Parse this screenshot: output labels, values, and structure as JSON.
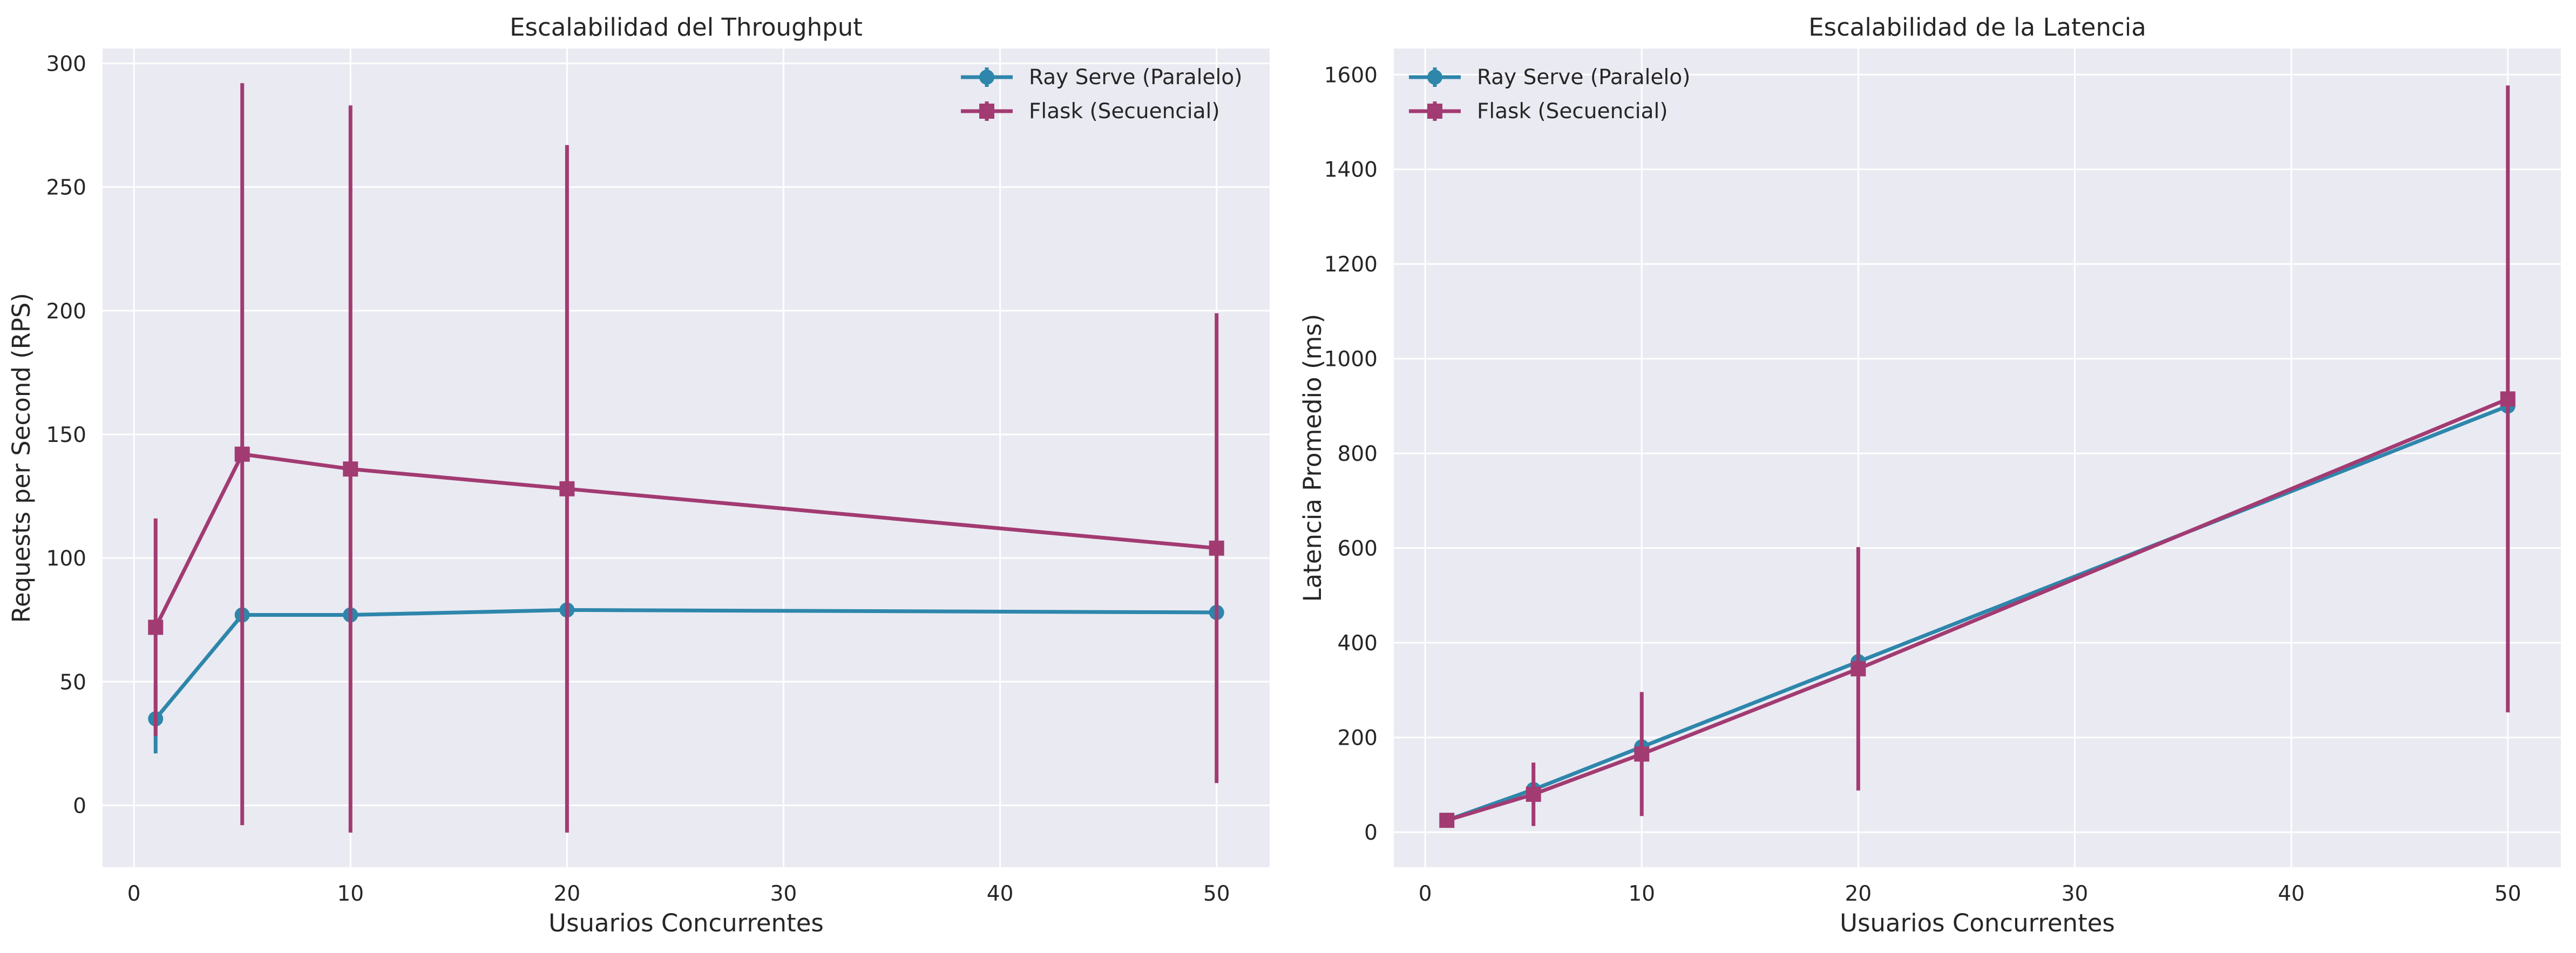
{
  "chart_data": [
    {
      "type": "line",
      "title": "Escalabilidad del Throughput",
      "xlabel": "Usuarios Concurrentes",
      "ylabel": "Requests per Second (RPS)",
      "xlim": [
        -1.45,
        52.45
      ],
      "ylim": [
        -25,
        306
      ],
      "xticks": [
        0,
        10,
        20,
        30,
        40,
        50
      ],
      "yticks": [
        0,
        50,
        100,
        150,
        200,
        250,
        300
      ],
      "grid": true,
      "legend_position": "top-right",
      "series": [
        {
          "name": "Ray Serve (Paralelo)",
          "color": "#2E86AB",
          "marker": "circle",
          "x": [
            1,
            5,
            10,
            20,
            50
          ],
          "y": [
            35,
            77,
            77,
            79,
            78
          ],
          "yerr": [
            14,
            null,
            null,
            null,
            null
          ]
        },
        {
          "name": "Flask (Secuencial)",
          "color": "#A23B72",
          "marker": "square",
          "x": [
            1,
            5,
            10,
            20,
            50
          ],
          "y": [
            72,
            142,
            136,
            128,
            104
          ],
          "yerr": [
            44,
            150,
            147,
            139,
            95
          ]
        }
      ]
    },
    {
      "type": "line",
      "title": "Escalabilidad de la Latencia",
      "xlabel": "Usuarios Concurrentes",
      "ylabel": "Latencia Promedio (ms)",
      "xlim": [
        -1.45,
        52.45
      ],
      "ylim": [
        -74,
        1655
      ],
      "xticks": [
        0,
        10,
        20,
        30,
        40,
        50
      ],
      "yticks": [
        0,
        200,
        400,
        600,
        800,
        1000,
        1200,
        1400,
        1600
      ],
      "grid": true,
      "legend_position": "top-left",
      "series": [
        {
          "name": "Ray Serve (Paralelo)",
          "color": "#2E86AB",
          "marker": "circle",
          "x": [
            1,
            5,
            10,
            20,
            50
          ],
          "y": [
            25,
            90,
            180,
            360,
            900
          ],
          "yerr": [
            null,
            null,
            null,
            null,
            null
          ]
        },
        {
          "name": "Flask (Secuencial)",
          "color": "#A23B72",
          "marker": "square",
          "x": [
            1,
            5,
            10,
            20,
            50
          ],
          "y": [
            25,
            80,
            165,
            345,
            915
          ],
          "yerr": [
            null,
            67,
            131,
            257,
            662
          ]
        }
      ]
    }
  ]
}
